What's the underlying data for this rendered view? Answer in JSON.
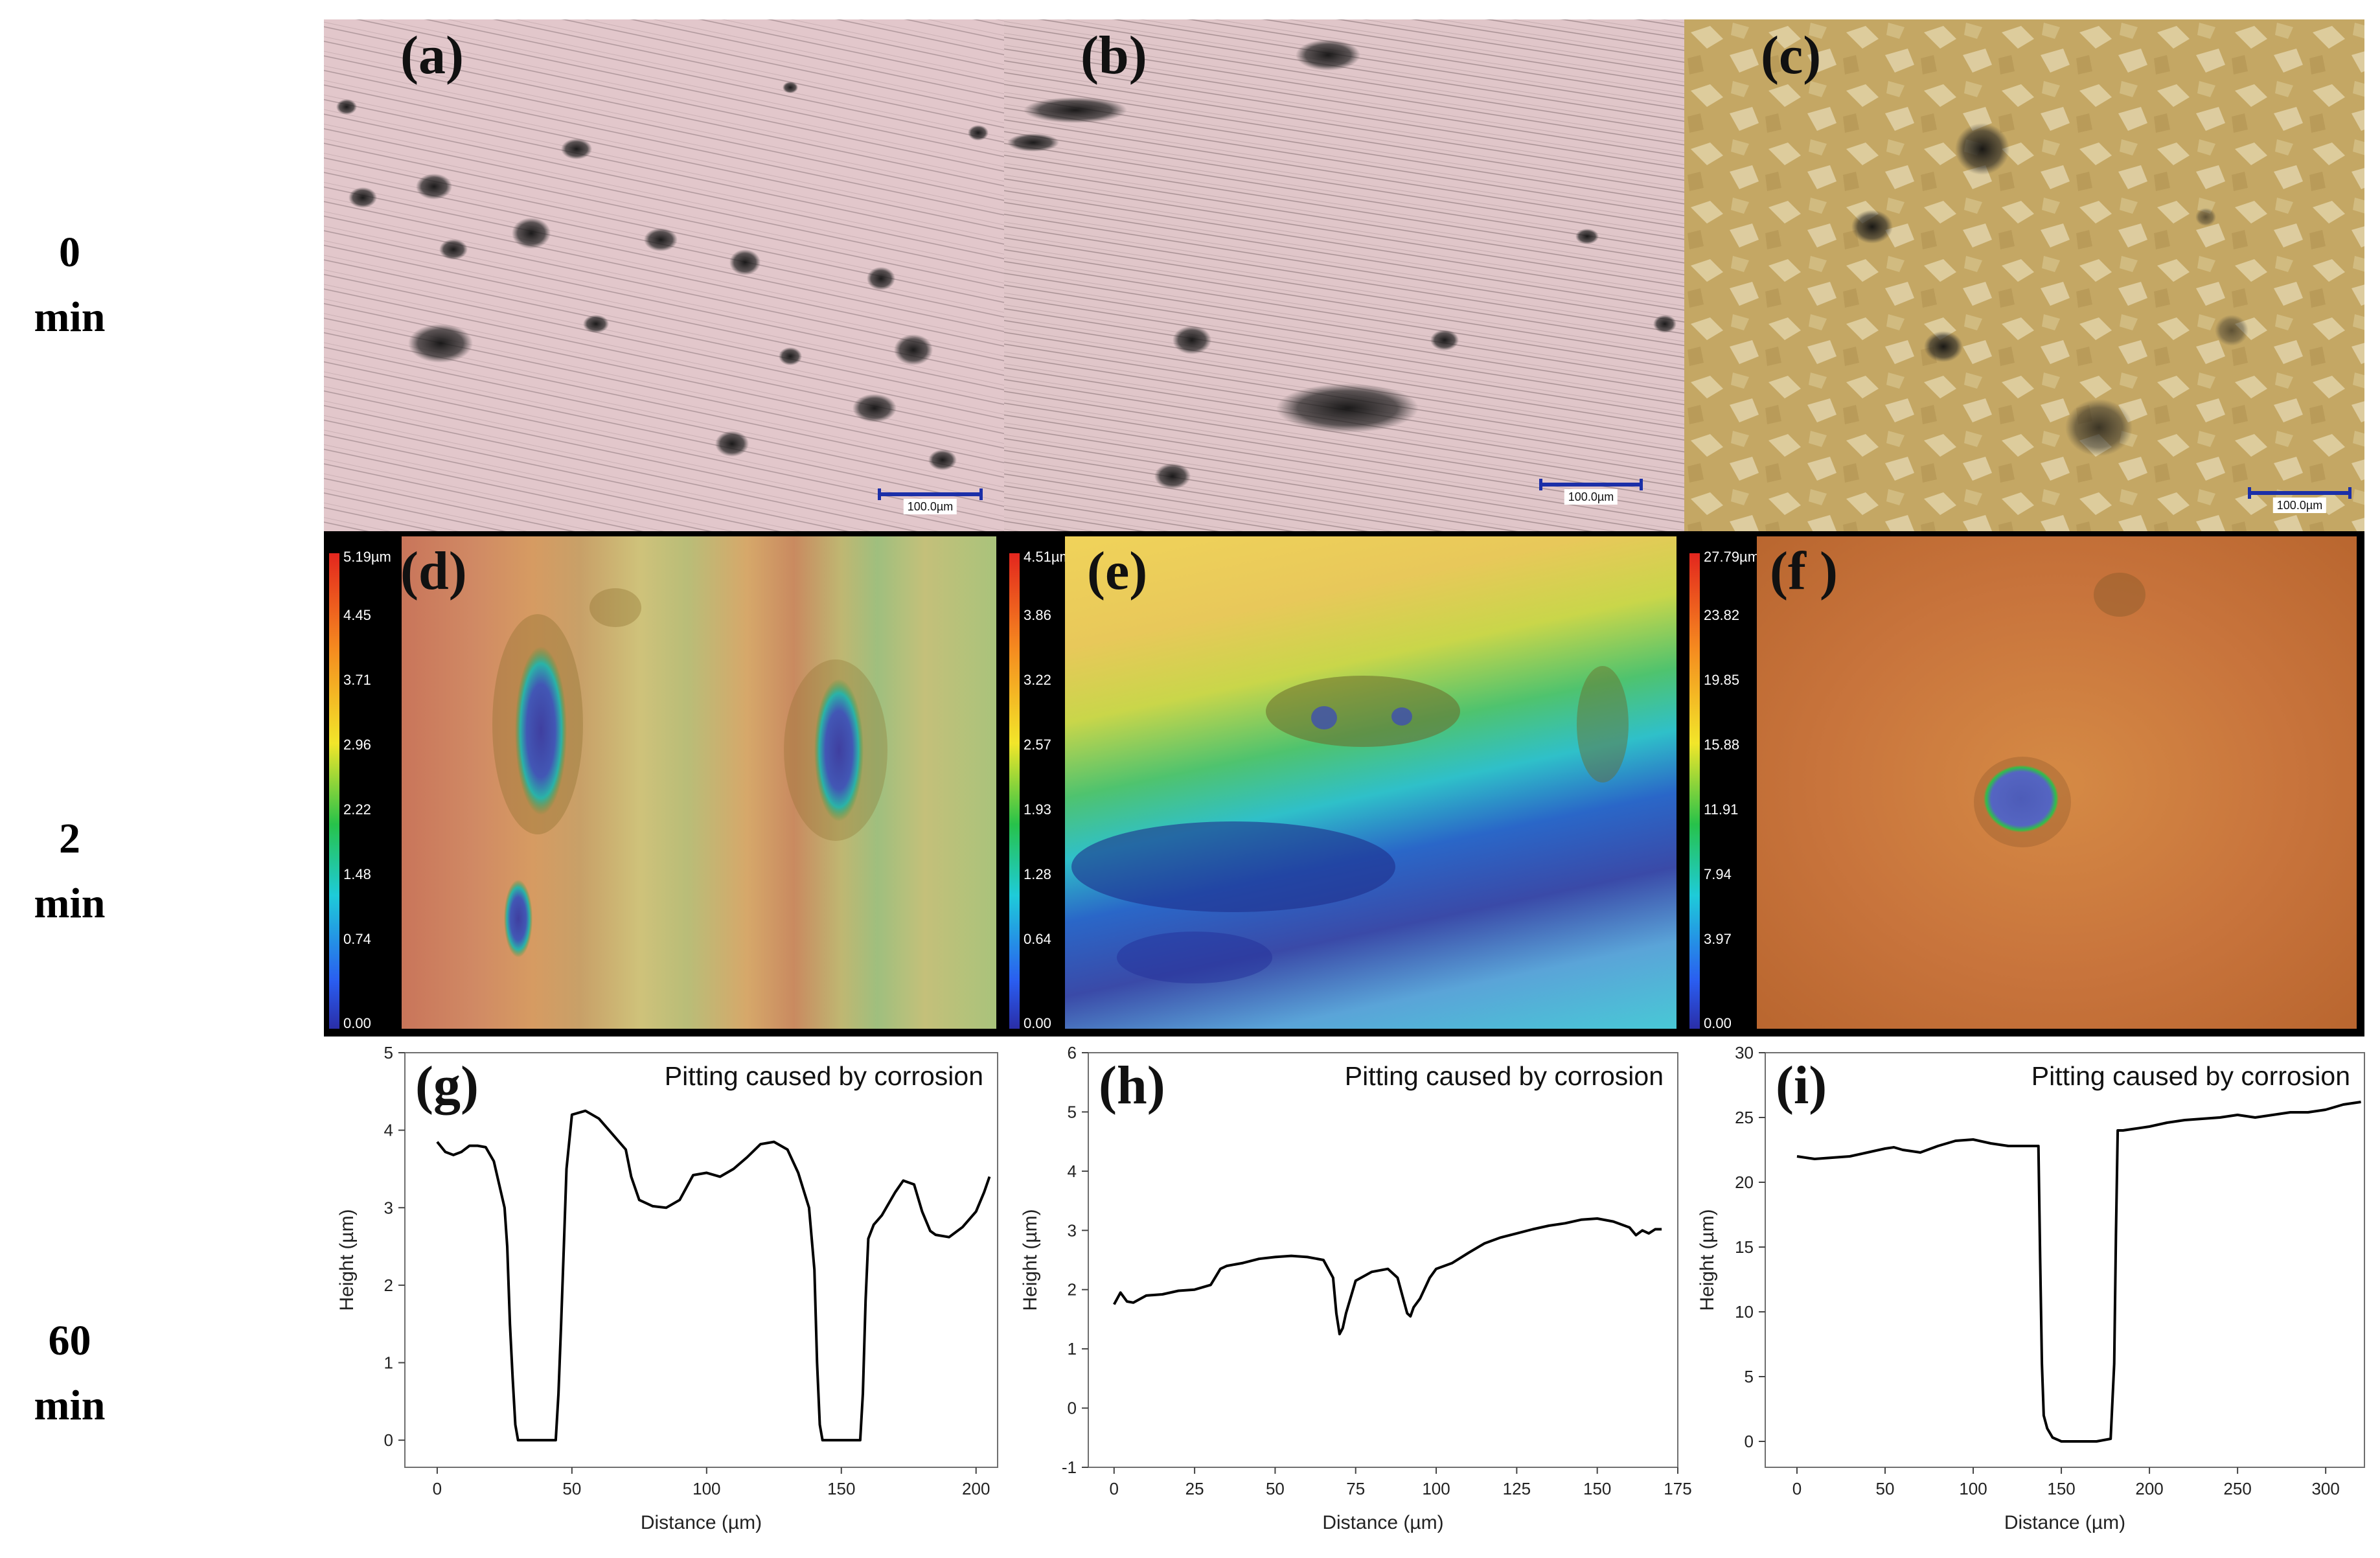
{
  "row_labels": [
    {
      "line1": "0",
      "line2": "min"
    },
    {
      "line1": "2",
      "line2": "min"
    },
    {
      "line1": "60",
      "line2": "min"
    }
  ],
  "panels": {
    "a": {
      "label": "(a)",
      "scale_text": "100.0µm"
    },
    "b": {
      "label": "(b)",
      "scale_text": "100.0µm"
    },
    "c": {
      "label": "(c)",
      "scale_text": "100.0µm"
    },
    "d": {
      "label": "(d)",
      "colorbar": [
        "5.19µm",
        "4.45",
        "3.71",
        "2.96",
        "2.22",
        "1.48",
        "0.74",
        "0.00"
      ]
    },
    "e": {
      "label": "(e)",
      "colorbar": [
        "4.51µm",
        "3.86",
        "3.22",
        "2.57",
        "1.93",
        "1.28",
        "0.64",
        "0.00"
      ]
    },
    "f": {
      "label": "(f )",
      "colorbar": [
        "27.79µm",
        "23.82",
        "19.85",
        "15.88",
        "11.91",
        "7.94",
        "3.97",
        "0.00"
      ]
    }
  },
  "colors": {
    "micrograph_pink": "#e4c8cc",
    "micrograph_gold": "#c9ad6a",
    "heightmap_copper": "#c8743c",
    "line": "#000000",
    "scale_bar": "#1b2fa8"
  },
  "chart_data": [
    {
      "panel": "g",
      "label": "(g)",
      "type": "line",
      "title": "Pitting caused by corrosion",
      "xlabel": "Distance (µm)",
      "ylabel": "Height (µm)",
      "xlim": [
        -12,
        208
      ],
      "ylim": [
        -0.35,
        5
      ],
      "xticks": [
        0,
        50,
        100,
        150,
        200
      ],
      "yticks": [
        0,
        1,
        2,
        3,
        4,
        5
      ],
      "grid": false,
      "series": [
        {
          "x": [
            0,
            3,
            6,
            9,
            12,
            15,
            18,
            21,
            23,
            25,
            26,
            27,
            28,
            29,
            30,
            35,
            40,
            44,
            45,
            46,
            47,
            48,
            50,
            55,
            60,
            65,
            70,
            72,
            75,
            80,
            85,
            90,
            95,
            100,
            105,
            110,
            115,
            120,
            125,
            130,
            134,
            138,
            140,
            141,
            142,
            143,
            145,
            150,
            155,
            157,
            158,
            159,
            160,
            162,
            165,
            170,
            173,
            177,
            180,
            183,
            185,
            190,
            195,
            200,
            203,
            205
          ],
          "y": [
            3.85,
            3.72,
            3.68,
            3.72,
            3.8,
            3.8,
            3.78,
            3.6,
            3.3,
            3.0,
            2.5,
            1.5,
            0.8,
            0.2,
            0.0,
            0.0,
            0.0,
            0.0,
            0.6,
            1.5,
            2.5,
            3.5,
            4.2,
            4.25,
            4.15,
            3.95,
            3.75,
            3.4,
            3.1,
            3.02,
            3.0,
            3.1,
            3.42,
            3.45,
            3.4,
            3.5,
            3.65,
            3.82,
            3.85,
            3.75,
            3.45,
            3.0,
            2.2,
            1.0,
            0.2,
            0.0,
            0.0,
            0.0,
            0.0,
            0.0,
            0.6,
            1.8,
            2.6,
            2.78,
            2.9,
            3.2,
            3.35,
            3.3,
            2.95,
            2.7,
            2.65,
            2.62,
            2.75,
            2.95,
            3.2,
            3.4
          ]
        }
      ]
    },
    {
      "panel": "h",
      "label": "(h)",
      "type": "line",
      "title": "Pitting caused by corrosion",
      "xlabel": "Distance (µm)",
      "ylabel": "Height (µm)",
      "xlim": [
        -8,
        175
      ],
      "ylim": [
        -1,
        6
      ],
      "xticks": [
        0,
        25,
        50,
        75,
        100,
        125,
        150,
        175
      ],
      "yticks": [
        -1,
        0,
        1,
        2,
        3,
        4,
        5,
        6
      ],
      "grid": false,
      "series": [
        {
          "x": [
            0,
            2,
            4,
            6,
            10,
            15,
            20,
            25,
            30,
            33,
            35,
            40,
            45,
            50,
            55,
            60,
            65,
            68,
            69,
            70,
            71,
            72,
            75,
            80,
            85,
            88,
            90,
            91,
            92,
            93,
            95,
            98,
            100,
            105,
            110,
            115,
            120,
            125,
            130,
            135,
            140,
            145,
            150,
            155,
            160,
            162,
            164,
            166,
            168,
            170
          ],
          "y": [
            1.75,
            1.95,
            1.8,
            1.78,
            1.9,
            1.92,
            1.98,
            2.0,
            2.08,
            2.35,
            2.4,
            2.45,
            2.52,
            2.55,
            2.57,
            2.55,
            2.5,
            2.2,
            1.6,
            1.25,
            1.35,
            1.6,
            2.15,
            2.3,
            2.35,
            2.2,
            1.8,
            1.6,
            1.55,
            1.7,
            1.85,
            2.2,
            2.35,
            2.45,
            2.62,
            2.78,
            2.88,
            2.95,
            3.02,
            3.08,
            3.12,
            3.18,
            3.2,
            3.15,
            3.05,
            2.92,
            3.0,
            2.95,
            3.02,
            3.02
          ]
        }
      ]
    },
    {
      "panel": "i",
      "label": "(i)",
      "type": "line",
      "title": "Pitting caused by corrosion",
      "xlabel": "Distance (µm)",
      "ylabel": "Height (µm)",
      "xlim": [
        -18,
        322
      ],
      "ylim": [
        -2,
        30
      ],
      "xticks": [
        0,
        50,
        100,
        150,
        200,
        250,
        300
      ],
      "yticks": [
        0,
        5,
        10,
        15,
        20,
        25,
        30
      ],
      "grid": false,
      "series": [
        {
          "x": [
            0,
            10,
            20,
            30,
            40,
            50,
            55,
            60,
            70,
            80,
            90,
            100,
            110,
            120,
            130,
            137,
            138,
            139,
            140,
            142,
            145,
            150,
            160,
            170,
            178,
            180,
            181,
            182,
            183,
            185,
            190,
            200,
            210,
            220,
            230,
            240,
            250,
            260,
            270,
            280,
            290,
            300,
            310,
            320
          ],
          "y": [
            22.0,
            21.8,
            21.9,
            22.0,
            22.3,
            22.6,
            22.7,
            22.5,
            22.3,
            22.8,
            23.2,
            23.3,
            23.0,
            22.8,
            22.8,
            22.8,
            14.0,
            6.0,
            2.0,
            1.0,
            0.3,
            0.0,
            0.0,
            0.0,
            0.2,
            6.0,
            16.0,
            24.0,
            24.0,
            24.0,
            24.1,
            24.3,
            24.6,
            24.8,
            24.9,
            25.0,
            25.2,
            25.0,
            25.2,
            25.4,
            25.4,
            25.6,
            26.0,
            26.2
          ]
        }
      ]
    }
  ]
}
